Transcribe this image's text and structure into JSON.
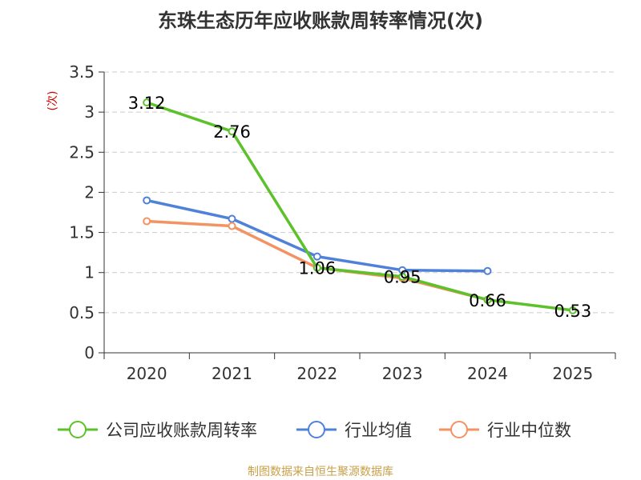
{
  "chart_data": {
    "type": "line",
    "title": "东珠生态历年应收账款周转率情况(次)",
    "ylabel": "(次)",
    "xlabel": "",
    "categories": [
      "2020",
      "2021",
      "2022",
      "2023",
      "2024",
      "2025"
    ],
    "ylim": [
      0,
      3.5
    ],
    "yticks": [
      "0",
      "0.5",
      "1",
      "1.5",
      "2",
      "2.5",
      "3",
      "3.5"
    ],
    "grid": true,
    "legend_position": "bottom",
    "series": [
      {
        "name": "公司应收账款周转率",
        "color": "#5cc12a",
        "values": [
          3.12,
          2.76,
          1.06,
          0.95,
          0.66,
          0.53
        ],
        "labels": [
          "3.12",
          "2.76",
          "1.06",
          "0.95",
          "0.66",
          "0.53"
        ]
      },
      {
        "name": "行业均值",
        "color": "#4f81d9",
        "values": [
          1.9,
          1.67,
          1.2,
          1.03,
          1.02,
          null
        ]
      },
      {
        "name": "行业中位数",
        "color": "#f39262",
        "values": [
          1.64,
          1.58,
          1.06,
          0.93,
          0.66,
          null
        ]
      }
    ]
  },
  "source": "制图数据来自恒生聚源数据库"
}
